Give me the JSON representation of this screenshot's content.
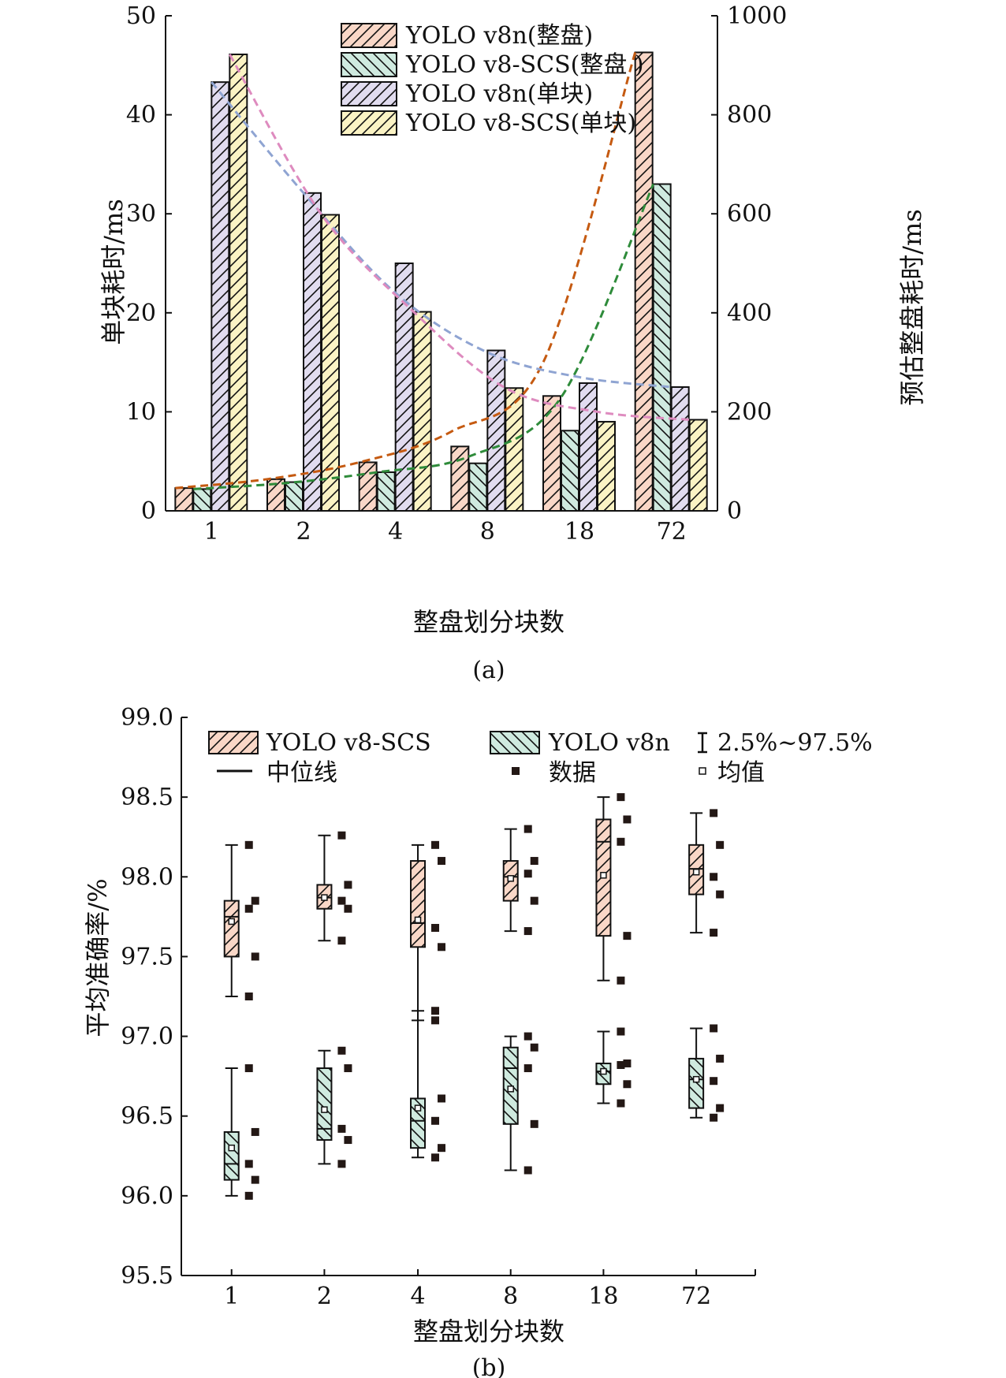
{
  "colors": {
    "salmon": "#f9d7c7",
    "mint": "#cfeadf",
    "lavender": "#e1dcef",
    "cream": "#fbf3c4",
    "curve_orange": "#c55a11",
    "curve_green": "#2e8b3a",
    "curve_blue": "#8fa4d2",
    "curve_pink": "#de8bbf",
    "data_square": "#231815"
  },
  "chart_data": [
    {
      "type": "bar",
      "panel_label": "(a)",
      "xlabel": "整盘划分块数",
      "ylabel": "单块耗时/ms",
      "ylabel_right": "预估整盘耗时/ms",
      "categories": [
        "1",
        "2",
        "4",
        "8",
        "18",
        "72"
      ],
      "ylim": [
        0,
        50
      ],
      "ylim_right": [
        0,
        1000
      ],
      "yticks": [
        "0",
        "10",
        "20",
        "30",
        "40",
        "50"
      ],
      "yticks_right": [
        "0",
        "200",
        "400",
        "600",
        "800",
        "1000"
      ],
      "legend_position": "top-center",
      "series": [
        {
          "name": "YOLO v8n(整盘)",
          "axis": "right",
          "values": [
            46,
            64,
            98,
            130,
            232,
            926
          ]
        },
        {
          "name": "YOLO v8-SCS(整盘 )",
          "axis": "right",
          "values": [
            44,
            58,
            78,
            96,
            162,
            660
          ]
        },
        {
          "name": "YOLO v8n(单块)",
          "axis": "left",
          "values": [
            43.3,
            32.1,
            25.0,
            16.2,
            12.9,
            12.5
          ]
        },
        {
          "name": "YOLO v8-SCS(单块)",
          "axis": "left",
          "values": [
            46.1,
            29.9,
            20.1,
            12.4,
            9.0,
            9.2
          ]
        }
      ],
      "trend_curves": [
        {
          "color_key": "curve_orange",
          "axis": "right",
          "values": [
            46,
            64,
            98,
            160,
            300,
            926
          ]
        },
        {
          "color_key": "curve_green",
          "axis": "right",
          "values": [
            44,
            56,
            78,
            110,
            230,
            660
          ]
        },
        {
          "color_key": "curve_blue",
          "axis": "left",
          "values": [
            43.3,
            32.1,
            22.0,
            16.0,
            13.5,
            12.5
          ]
        },
        {
          "color_key": "curve_pink",
          "axis": "left",
          "values": [
            46.1,
            29.9,
            20.1,
            12.4,
            10.0,
            9.2
          ]
        }
      ]
    },
    {
      "type": "box",
      "panel_label": "(b)",
      "xlabel": "整盘划分块数",
      "ylabel": "平均准确率/%",
      "categories": [
        "1",
        "2",
        "4",
        "8",
        "18",
        "72"
      ],
      "ylim": [
        95.5,
        99.0
      ],
      "yticks": [
        "95.5",
        "96.0",
        "96.5",
        "97.0",
        "97.5",
        "98.0",
        "98.5",
        "99.0"
      ],
      "legend": {
        "scs": "YOLO v8-SCS",
        "v8n": "YOLO v8n",
        "range": "2.5%~97.5%",
        "median": "中位线",
        "data": "数据",
        "mean": "均值"
      },
      "series": [
        {
          "name": "YOLO v8-SCS",
          "boxes": [
            {
              "whisker_low": 97.25,
              "q1": 97.5,
              "median": 97.75,
              "q3": 97.85,
              "whisker_high": 98.2,
              "mean": 97.72,
              "points": [
                98.2,
                97.85,
                97.8,
                97.5,
                97.25
              ]
            },
            {
              "whisker_low": 97.6,
              "q1": 97.8,
              "median": 97.87,
              "q3": 97.95,
              "whisker_high": 98.26,
              "mean": 97.87,
              "points": [
                98.26,
                97.95,
                97.85,
                97.8,
                97.6
              ]
            },
            {
              "whisker_low": 97.1,
              "q1": 97.56,
              "median": 97.71,
              "q3": 98.1,
              "whisker_high": 98.2,
              "mean": 97.73,
              "points": [
                98.2,
                98.1,
                97.68,
                97.56,
                97.1
              ]
            },
            {
              "whisker_low": 97.66,
              "q1": 97.85,
              "median": 98.0,
              "q3": 98.1,
              "whisker_high": 98.3,
              "mean": 97.99,
              "points": [
                98.3,
                98.1,
                98.02,
                97.85,
                97.66
              ]
            },
            {
              "whisker_low": 97.35,
              "q1": 97.63,
              "median": 98.22,
              "q3": 98.36,
              "whisker_high": 98.5,
              "mean": 98.01,
              "points": [
                98.5,
                98.36,
                98.22,
                97.63,
                97.35
              ]
            },
            {
              "whisker_low": 97.65,
              "q1": 97.89,
              "median": 98.05,
              "q3": 98.2,
              "whisker_high": 98.4,
              "mean": 98.03,
              "points": [
                98.4,
                98.2,
                98.0,
                97.89,
                97.65
              ]
            }
          ]
        },
        {
          "name": "YOLO v8n",
          "boxes": [
            {
              "whisker_low": 96.0,
              "q1": 96.1,
              "median": 96.2,
              "q3": 96.4,
              "whisker_high": 96.8,
              "mean": 96.3,
              "points": [
                96.8,
                96.4,
                96.2,
                96.1,
                96.0
              ]
            },
            {
              "whisker_low": 96.2,
              "q1": 96.35,
              "median": 96.42,
              "q3": 96.8,
              "whisker_high": 96.91,
              "mean": 96.54,
              "points": [
                96.91,
                96.8,
                96.42,
                96.35,
                96.2
              ]
            },
            {
              "whisker_low": 96.24,
              "q1": 96.3,
              "median": 96.47,
              "q3": 96.61,
              "whisker_high": 97.16,
              "mean": 96.55,
              "points": [
                97.16,
                96.61,
                96.47,
                96.3,
                96.24
              ]
            },
            {
              "whisker_low": 96.16,
              "q1": 96.45,
              "median": 96.8,
              "q3": 96.93,
              "whisker_high": 97.0,
              "mean": 96.67,
              "points": [
                97.0,
                96.93,
                96.8,
                96.45,
                96.16
              ]
            },
            {
              "whisker_low": 96.58,
              "q1": 96.7,
              "median": 96.78,
              "q3": 96.83,
              "whisker_high": 97.03,
              "mean": 96.78,
              "points": [
                97.03,
                96.83,
                96.82,
                96.7,
                96.58
              ]
            },
            {
              "whisker_low": 96.49,
              "q1": 96.55,
              "median": 96.73,
              "q3": 96.86,
              "whisker_high": 97.05,
              "mean": 96.73,
              "points": [
                97.05,
                96.86,
                96.72,
                96.55,
                96.49
              ]
            }
          ]
        }
      ]
    }
  ]
}
